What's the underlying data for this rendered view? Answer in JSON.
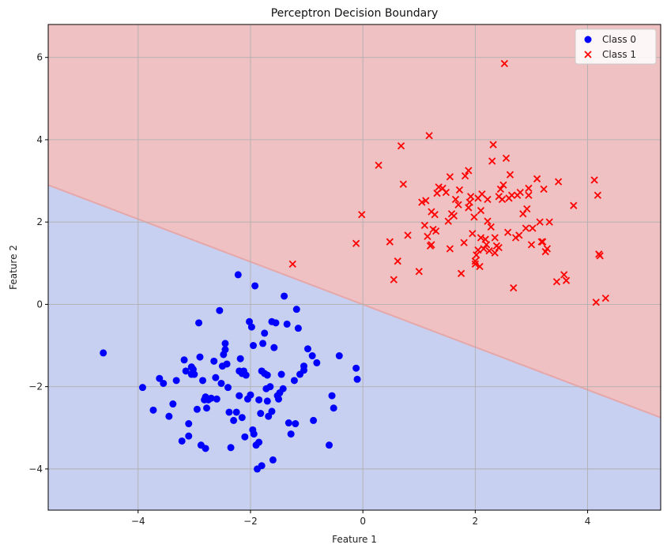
{
  "chart_data": {
    "type": "scatter",
    "title": "Perceptron Decision Boundary",
    "xlabel": "Feature 1",
    "ylabel": "Feature 2",
    "xlim": [
      -5.6,
      5.3
    ],
    "ylim": [
      -5.0,
      6.8
    ],
    "xticks": [
      -4,
      -2,
      0,
      2,
      4
    ],
    "yticks": [
      -4,
      -2,
      0,
      2,
      4,
      6
    ],
    "grid": true,
    "legend_position": "top-right",
    "decision_boundary": {
      "points": [
        [
          -5.6,
          2.9
        ],
        [
          5.3,
          -2.75
        ]
      ]
    },
    "region_colors": {
      "class_0": "#c7d0f1",
      "class_1": "#efc1c2"
    },
    "series": [
      {
        "name": "Class 0",
        "marker": "circle",
        "color": "#0000ff",
        "points": [
          [
            -4.62,
            -1.18
          ],
          [
            -3.92,
            -2.02
          ],
          [
            -3.73,
            -2.57
          ],
          [
            -3.62,
            -1.8
          ],
          [
            -3.55,
            -1.92
          ],
          [
            -3.45,
            -2.72
          ],
          [
            -3.38,
            -2.42
          ],
          [
            -3.32,
            -1.85
          ],
          [
            -3.22,
            -3.32
          ],
          [
            -3.18,
            -1.35
          ],
          [
            -3.15,
            -1.62
          ],
          [
            -3.1,
            -3.2
          ],
          [
            -3.05,
            -1.52
          ],
          [
            -3.02,
            -1.58
          ],
          [
            -3.0,
            -1.7
          ],
          [
            -2.95,
            -2.55
          ],
          [
            -2.92,
            -0.45
          ],
          [
            -2.9,
            -1.28
          ],
          [
            -2.88,
            -3.42
          ],
          [
            -2.85,
            -1.85
          ],
          [
            -2.82,
            -2.32
          ],
          [
            -2.8,
            -3.5
          ],
          [
            -2.78,
            -2.52
          ],
          [
            -2.75,
            -2.32
          ],
          [
            -2.7,
            -2.28
          ],
          [
            -2.65,
            -1.38
          ],
          [
            -2.62,
            -1.78
          ],
          [
            -2.6,
            -2.3
          ],
          [
            -2.55,
            -0.15
          ],
          [
            -2.52,
            -1.92
          ],
          [
            -2.5,
            -1.5
          ],
          [
            -2.48,
            -1.22
          ],
          [
            -2.45,
            -0.95
          ],
          [
            -2.42,
            -1.45
          ],
          [
            -2.4,
            -2.02
          ],
          [
            -2.38,
            -2.62
          ],
          [
            -2.35,
            -3.48
          ],
          [
            -2.3,
            -2.82
          ],
          [
            -2.25,
            -2.62
          ],
          [
            -2.22,
            0.72
          ],
          [
            -2.2,
            -2.22
          ],
          [
            -2.18,
            -1.32
          ],
          [
            -2.15,
            -1.68
          ],
          [
            -2.12,
            -1.62
          ],
          [
            -2.1,
            -3.22
          ],
          [
            -2.08,
            -1.72
          ],
          [
            -2.05,
            -2.3
          ],
          [
            -2.02,
            -0.42
          ],
          [
            -1.98,
            -0.55
          ],
          [
            -1.96,
            -3.05
          ],
          [
            -1.94,
            -3.15
          ],
          [
            -1.92,
            0.45
          ],
          [
            -1.9,
            -3.42
          ],
          [
            -1.88,
            -4.0
          ],
          [
            -1.85,
            -2.32
          ],
          [
            -1.82,
            -2.65
          ],
          [
            -1.8,
            -1.62
          ],
          [
            -1.78,
            -0.95
          ],
          [
            -1.75,
            -0.7
          ],
          [
            -1.72,
            -2.05
          ],
          [
            -1.7,
            -1.72
          ],
          [
            -1.68,
            -2.72
          ],
          [
            -1.65,
            -2.0
          ],
          [
            -1.62,
            -2.6
          ],
          [
            -1.6,
            -3.78
          ],
          [
            -1.58,
            -1.05
          ],
          [
            -1.55,
            -0.45
          ],
          [
            -1.52,
            -2.22
          ],
          [
            -1.48,
            -2.15
          ],
          [
            -1.45,
            -1.7
          ],
          [
            -1.42,
            -2.05
          ],
          [
            -1.4,
            0.2
          ],
          [
            -1.35,
            -0.48
          ],
          [
            -1.32,
            -2.88
          ],
          [
            -1.28,
            -3.15
          ],
          [
            -1.22,
            -1.85
          ],
          [
            -1.18,
            -0.12
          ],
          [
            -1.15,
            -0.58
          ],
          [
            -1.12,
            -1.7
          ],
          [
            -1.05,
            -1.6
          ],
          [
            -0.98,
            -1.08
          ],
          [
            -0.9,
            -1.25
          ],
          [
            -0.88,
            -2.82
          ],
          [
            -0.82,
            -1.42
          ],
          [
            -0.6,
            -3.42
          ],
          [
            -0.55,
            -2.22
          ],
          [
            -0.52,
            -2.52
          ],
          [
            -0.42,
            -1.25
          ],
          [
            -0.12,
            -1.55
          ],
          [
            -0.1,
            -1.82
          ],
          [
            -1.05,
            -1.5
          ],
          [
            -2.2,
            -1.62
          ],
          [
            -1.85,
            -3.35
          ],
          [
            -2.45,
            -1.1
          ],
          [
            -1.7,
            -2.35
          ],
          [
            -2.15,
            -2.75
          ],
          [
            -1.95,
            -1.0
          ],
          [
            -1.8,
            -3.92
          ],
          [
            -1.75,
            -1.68
          ],
          [
            -1.2,
            -2.9
          ],
          [
            -1.62,
            -0.42
          ],
          [
            -3.05,
            -1.7
          ],
          [
            -2.8,
            -2.25
          ],
          [
            -2.0,
            -2.2
          ],
          [
            -1.5,
            -2.3
          ],
          [
            -3.1,
            -2.9
          ]
        ]
      },
      {
        "name": "Class 1",
        "marker": "x",
        "color": "#ff0000",
        "points": [
          [
            -1.25,
            0.98
          ],
          [
            -0.12,
            1.48
          ],
          [
            -0.02,
            2.18
          ],
          [
            0.28,
            3.38
          ],
          [
            0.48,
            1.52
          ],
          [
            0.55,
            0.6
          ],
          [
            0.62,
            1.05
          ],
          [
            0.68,
            3.85
          ],
          [
            0.72,
            2.92
          ],
          [
            0.8,
            1.68
          ],
          [
            1.0,
            0.8
          ],
          [
            1.05,
            2.48
          ],
          [
            1.1,
            1.92
          ],
          [
            1.12,
            2.52
          ],
          [
            1.18,
            4.1
          ],
          [
            1.2,
            1.42
          ],
          [
            1.22,
            2.25
          ],
          [
            1.25,
            1.82
          ],
          [
            1.28,
            2.18
          ],
          [
            1.32,
            2.7
          ],
          [
            1.35,
            2.85
          ],
          [
            1.42,
            2.82
          ],
          [
            1.48,
            2.72
          ],
          [
            1.52,
            2.02
          ],
          [
            1.55,
            3.1
          ],
          [
            1.58,
            2.2
          ],
          [
            1.62,
            2.15
          ],
          [
            1.65,
            2.55
          ],
          [
            1.72,
            2.78
          ],
          [
            1.75,
            0.75
          ],
          [
            1.8,
            1.5
          ],
          [
            1.82,
            3.12
          ],
          [
            1.88,
            3.25
          ],
          [
            1.9,
            2.48
          ],
          [
            1.92,
            2.62
          ],
          [
            1.95,
            1.72
          ],
          [
            1.98,
            2.12
          ],
          [
            2.0,
            1.05
          ],
          [
            2.02,
            1.2
          ],
          [
            2.05,
            2.58
          ],
          [
            2.08,
            0.92
          ],
          [
            2.1,
            1.62
          ],
          [
            2.12,
            2.68
          ],
          [
            2.15,
            1.35
          ],
          [
            2.18,
            1.58
          ],
          [
            2.2,
            1.45
          ],
          [
            2.22,
            2.02
          ],
          [
            2.25,
            1.3
          ],
          [
            2.28,
            1.88
          ],
          [
            2.3,
            3.48
          ],
          [
            2.32,
            3.88
          ],
          [
            2.35,
            1.25
          ],
          [
            2.38,
            1.42
          ],
          [
            2.42,
            2.62
          ],
          [
            2.45,
            2.8
          ],
          [
            2.5,
            2.9
          ],
          [
            2.52,
            5.85
          ],
          [
            2.55,
            3.55
          ],
          [
            2.58,
            1.75
          ],
          [
            2.62,
            3.15
          ],
          [
            2.65,
            2.65
          ],
          [
            2.68,
            0.4
          ],
          [
            2.72,
            1.62
          ],
          [
            2.75,
            2.65
          ],
          [
            2.8,
            2.72
          ],
          [
            2.85,
            2.2
          ],
          [
            2.9,
            1.85
          ],
          [
            2.92,
            2.32
          ],
          [
            2.95,
            2.82
          ],
          [
            3.0,
            1.45
          ],
          [
            3.02,
            1.85
          ],
          [
            3.1,
            3.05
          ],
          [
            3.15,
            2.0
          ],
          [
            3.2,
            1.52
          ],
          [
            3.22,
            2.8
          ],
          [
            3.28,
            1.35
          ],
          [
            3.32,
            2.0
          ],
          [
            3.45,
            0.55
          ],
          [
            3.48,
            2.98
          ],
          [
            3.58,
            0.72
          ],
          [
            3.62,
            0.58
          ],
          [
            3.75,
            2.4
          ],
          [
            4.12,
            3.02
          ],
          [
            4.15,
            0.05
          ],
          [
            4.18,
            2.65
          ],
          [
            4.2,
            1.22
          ],
          [
            4.22,
            1.18
          ],
          [
            4.32,
            0.15
          ],
          [
            1.22,
            1.45
          ],
          [
            1.88,
            2.35
          ],
          [
            2.05,
            1.32
          ],
          [
            2.35,
            1.62
          ],
          [
            2.48,
            2.55
          ],
          [
            2.78,
            1.68
          ],
          [
            3.25,
            1.28
          ],
          [
            1.7,
            2.42
          ],
          [
            2.6,
            2.58
          ],
          [
            1.3,
            1.78
          ],
          [
            2.1,
            2.28
          ],
          [
            2.0,
            0.98
          ],
          [
            2.42,
            1.38
          ],
          [
            1.55,
            1.35
          ],
          [
            2.95,
            2.65
          ],
          [
            1.15,
            1.65
          ],
          [
            3.18,
            1.52
          ],
          [
            2.22,
            2.55
          ]
        ]
      }
    ]
  }
}
